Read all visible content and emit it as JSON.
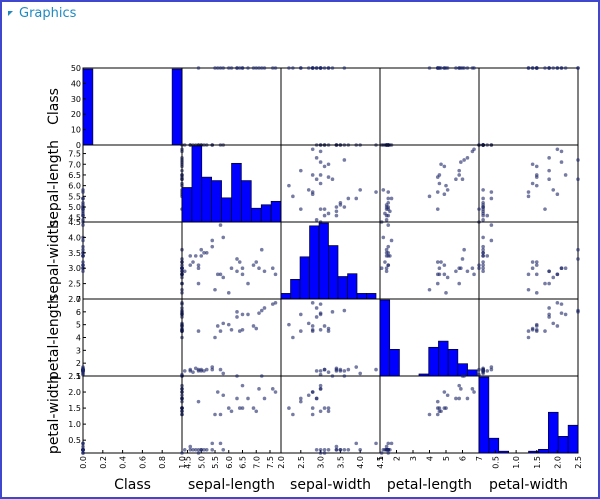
{
  "header": {
    "title": "Graphics"
  },
  "chart_data": {
    "type": "scatter_matrix",
    "columns": [
      {
        "name": "Class",
        "lim": [
          0,
          1
        ],
        "ticks": [
          {
            "value": 0,
            "label": "0.0"
          },
          0.2,
          0.4,
          0.6,
          0.8,
          {
            "value": 1,
            "label": "1.0"
          }
        ],
        "ylim": [
          0,
          50
        ],
        "yticks": [
          0,
          10,
          20,
          30,
          40,
          50
        ],
        "values": [
          0,
          0,
          0,
          0,
          0,
          0,
          0,
          0,
          0,
          0,
          0,
          0,
          0,
          0,
          0,
          0,
          1,
          1,
          1,
          1,
          1,
          1,
          1,
          1,
          1,
          1,
          1,
          1,
          1,
          1,
          1,
          1,
          1,
          1,
          1,
          1
        ],
        "hist": {
          "bins": [
            0,
            0.1,
            0.2,
            0.3,
            0.4,
            0.5,
            0.6,
            0.7,
            0.8,
            0.9,
            1
          ],
          "counts": [
            50,
            0,
            0,
            0,
            0,
            0,
            0,
            0,
            0,
            50
          ]
        }
      },
      {
        "name": "sepal-length",
        "lim": [
          4.3,
          7.9
        ],
        "ticks": [
          4.5,
          {
            "value": 5,
            "label": "5.0"
          },
          5.5,
          {
            "value": 6,
            "label": "6.0"
          },
          6.5,
          {
            "value": 7,
            "label": "7.0"
          },
          7.5
        ],
        "values": [
          5.1,
          4.9,
          4.7,
          4.6,
          5.0,
          5.4,
          4.6,
          5.0,
          4.4,
          4.9,
          5.4,
          4.8,
          4.3,
          5.8,
          5.7,
          5.2,
          7.0,
          6.4,
          6.9,
          5.5,
          6.5,
          5.7,
          6.3,
          5.8,
          7.1,
          6.3,
          6.5,
          7.6,
          4.9,
          7.3,
          6.7,
          7.2,
          6.0,
          5.6,
          7.7,
          6.1
        ],
        "hist": {
          "bins": [
            4.3,
            4.66,
            5.02,
            5.38,
            5.74,
            6.1,
            6.46,
            6.82,
            7.18,
            7.54,
            7.9
          ],
          "counts": [
            10,
            22,
            13,
            12,
            7,
            17,
            12,
            4,
            5,
            6
          ]
        }
      },
      {
        "name": "sepal-width",
        "lim": [
          2,
          4.5
        ],
        "ticks": [
          {
            "value": 2,
            "label": "2.0"
          },
          2.5,
          {
            "value": 3,
            "label": "3.0"
          },
          3.5,
          {
            "value": 4,
            "label": "4.0"
          },
          4.5
        ],
        "values": [
          3.5,
          3.0,
          3.2,
          3.1,
          3.6,
          3.9,
          3.4,
          3.4,
          2.9,
          3.1,
          3.7,
          3.4,
          3.0,
          4.0,
          4.4,
          3.5,
          3.2,
          3.2,
          3.1,
          2.3,
          2.8,
          2.8,
          3.3,
          2.7,
          3.0,
          2.9,
          3.0,
          3.0,
          2.5,
          2.9,
          2.5,
          3.6,
          2.2,
          2.8,
          2.8,
          3.0
        ],
        "hist": {
          "bins": [
            2,
            2.24,
            2.48,
            2.72,
            2.96,
            3.2,
            3.44,
            3.68,
            3.92,
            4.16,
            4.4
          ],
          "counts": [
            2,
            7,
            15,
            26,
            27,
            19,
            8,
            9,
            2,
            2
          ]
        }
      },
      {
        "name": "petal-length",
        "lim": [
          1,
          7
        ],
        "ticks": [
          1,
          2,
          3,
          4,
          5,
          6,
          7
        ],
        "values": [
          1.4,
          1.4,
          1.3,
          1.5,
          1.4,
          1.7,
          1.4,
          1.5,
          1.4,
          1.5,
          1.5,
          1.6,
          1.1,
          1.2,
          1.5,
          1.5,
          4.7,
          4.5,
          4.9,
          4.0,
          4.6,
          4.5,
          6.0,
          5.1,
          5.9,
          5.6,
          5.8,
          6.6,
          4.5,
          6.3,
          5.8,
          6.1,
          5.0,
          4.9,
          6.7,
          4.6
        ],
        "hist": {
          "bins": [
            1,
            1.59,
            2.18,
            2.77,
            3.36,
            3.95,
            4.54,
            5.13,
            5.72,
            6.31,
            6.9
          ],
          "counts": [
            37,
            13,
            0,
            0,
            1,
            14,
            17,
            13,
            6,
            3
          ]
        }
      },
      {
        "name": "petal-width",
        "lim": [
          0.1,
          2.5
        ],
        "ticks": [
          0.5,
          {
            "value": 1,
            "label": "1.0"
          },
          1.5,
          {
            "value": 2,
            "label": "2.0"
          },
          2.5
        ],
        "values": [
          0.2,
          0.2,
          0.2,
          0.2,
          0.2,
          0.4,
          0.3,
          0.2,
          0.2,
          0.1,
          0.2,
          0.2,
          0.1,
          0.2,
          0.4,
          0.2,
          1.4,
          1.5,
          1.5,
          1.3,
          1.5,
          1.3,
          2.5,
          1.9,
          2.1,
          1.8,
          2.2,
          2.1,
          1.7,
          1.8,
          1.8,
          2.5,
          1.5,
          2.0,
          2.0,
          1.4
        ],
        "hist": {
          "bins": [
            0.1,
            0.34,
            0.58,
            0.82,
            1.06,
            1.3,
            1.54,
            1.78,
            2.02,
            2.26,
            2.5
          ],
          "counts": [
            41,
            8,
            1,
            0,
            0,
            1,
            2,
            22,
            9,
            15
          ]
        }
      }
    ],
    "point_color": "#1b2466",
    "bar_color": "#0000ff"
  }
}
